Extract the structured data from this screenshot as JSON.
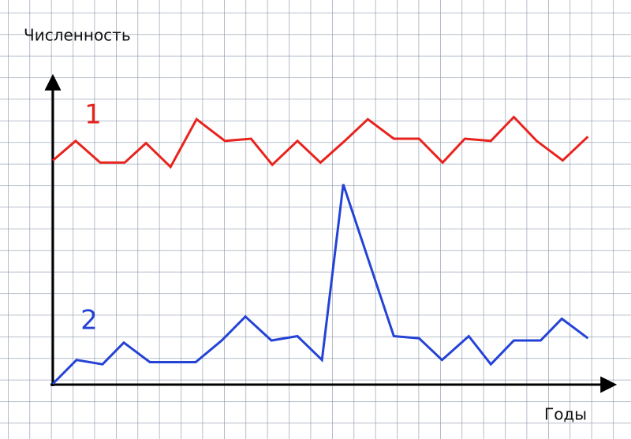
{
  "chart_data": {
    "type": "line",
    "y_label": "Численность",
    "x_label": "Годы",
    "xlim": [
      0,
      25.8
    ],
    "ylim": [
      0,
      14.1
    ],
    "series": [
      {
        "name": "1",
        "color": "#e8231e",
        "x": [
          0,
          1.05,
          2.18,
          3.31,
          4.29,
          5.42,
          6.62,
          7.93,
          9.13,
          10.11,
          11.27,
          12.33,
          13.45,
          14.51,
          15.71,
          16.87,
          17.96,
          18.98,
          20.18,
          21.24,
          22.29,
          23.49,
          24.65
        ],
        "values": [
          10.3,
          11.2,
          10.2,
          10.2,
          11.1,
          10.0,
          12.2,
          11.2,
          11.3,
          10.1,
          11.2,
          10.2,
          11.2,
          12.2,
          11.3,
          11.3,
          10.2,
          11.3,
          11.2,
          12.3,
          11.2,
          10.3,
          11.4
        ]
      },
      {
        "name": "2",
        "color": "#2443d6",
        "x": [
          0,
          1.09,
          2.29,
          3.27,
          4.47,
          5.49,
          6.58,
          7.78,
          8.87,
          10.07,
          11.27,
          12.4,
          13.38,
          15.71,
          16.87,
          17.93,
          19.16,
          20.18,
          21.24,
          22.47,
          23.45,
          24.65
        ],
        "values": [
          0,
          1.1,
          0.9,
          1.9,
          1.0,
          1.0,
          1.0,
          2.0,
          3.1,
          2.0,
          2.2,
          1.1,
          9.2,
          2.2,
          2.1,
          1.1,
          2.2,
          0.9,
          2.0,
          2.0,
          3.0,
          2.1
        ]
      }
    ]
  }
}
